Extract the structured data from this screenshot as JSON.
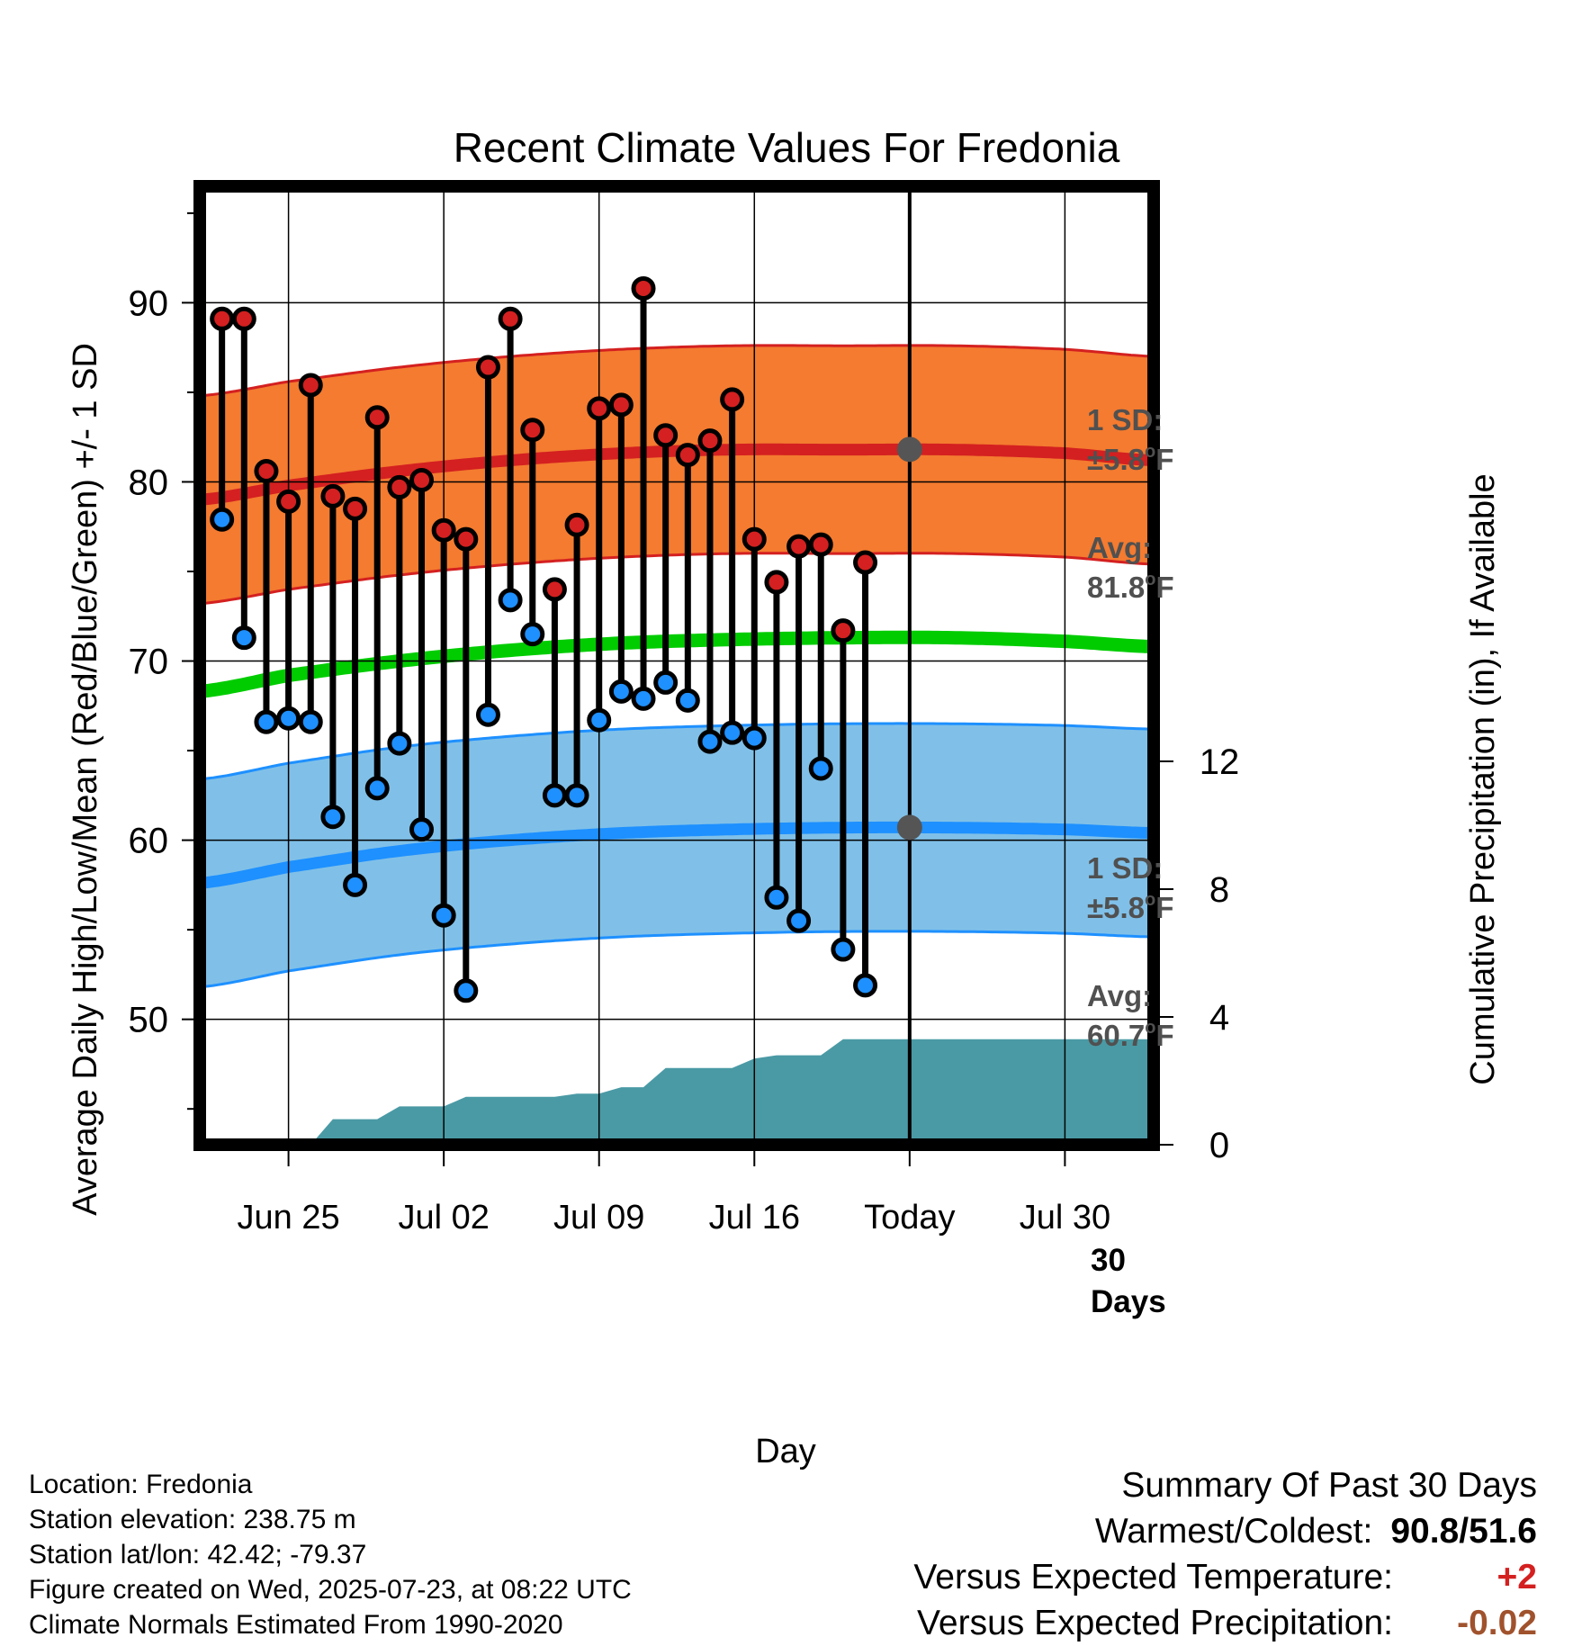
{
  "chart_data": {
    "type": "line",
    "title": "Recent Climate Values For Fredonia",
    "xlabel": "Day",
    "ylabel": "Average Daily High/Low/Mean (Red/Blue/Green) +/- 1 SD",
    "y2label": "Cumulative Precipitation (in), If Available",
    "ylim": [
      43,
      96.5
    ],
    "y2lim": [
      0,
      30
    ],
    "x_start": "2025-06-21",
    "x_end": "2025-08-03",
    "today": "2025-07-23",
    "x_ticks": [
      {
        "date": "2025-06-25",
        "label": "Jun 25"
      },
      {
        "date": "2025-07-02",
        "label": "Jul 02"
      },
      {
        "date": "2025-07-09",
        "label": "Jul 09"
      },
      {
        "date": "2025-07-16",
        "label": "Jul 16"
      },
      {
        "date": "2025-07-23",
        "label": "Today"
      },
      {
        "date": "2025-07-30",
        "label": "Jul 30"
      }
    ],
    "y_ticks": [
      50,
      60,
      70,
      80,
      90
    ],
    "y2_ticks": [
      0,
      4,
      8,
      12
    ],
    "grid": true,
    "colors": {
      "high_band": "#f47b30",
      "high_line": "#d42020",
      "low_band": "#80c0e8",
      "low_line": "#1e90ff",
      "mean_line": "#00cc00",
      "precip": "#4a9aa5",
      "high_dot": "#d42020",
      "low_dot": "#1e90ff",
      "annotation_text": "#505050",
      "versus_temp": "#d42020",
      "versus_precip": "#a0522d"
    },
    "normals": {
      "dates": [
        "2025-06-21",
        "2025-06-25",
        "2025-06-30",
        "2025-07-05",
        "2025-07-10",
        "2025-07-15",
        "2025-07-20",
        "2025-07-25",
        "2025-07-30",
        "2025-08-03"
      ],
      "high_avg": [
        79.0,
        79.8,
        80.6,
        81.2,
        81.6,
        81.8,
        81.8,
        81.8,
        81.6,
        81.2
      ],
      "low_avg": [
        57.6,
        58.5,
        59.4,
        60.0,
        60.4,
        60.6,
        60.7,
        60.7,
        60.6,
        60.4
      ],
      "mean_avg": [
        68.3,
        69.2,
        70.0,
        70.6,
        71.0,
        71.2,
        71.3,
        71.3,
        71.1,
        70.8
      ],
      "high_sd": 5.8,
      "low_sd": 5.8
    },
    "daily": {
      "dates": [
        "2025-06-22",
        "2025-06-23",
        "2025-06-24",
        "2025-06-25",
        "2025-06-26",
        "2025-06-27",
        "2025-06-28",
        "2025-06-29",
        "2025-06-30",
        "2025-07-01",
        "2025-07-02",
        "2025-07-03",
        "2025-07-04",
        "2025-07-05",
        "2025-07-06",
        "2025-07-07",
        "2025-07-08",
        "2025-07-09",
        "2025-07-10",
        "2025-07-11",
        "2025-07-12",
        "2025-07-13",
        "2025-07-14",
        "2025-07-15",
        "2025-07-16",
        "2025-07-17",
        "2025-07-18",
        "2025-07-19",
        "2025-07-20",
        "2025-07-21",
        "2025-07-22"
      ],
      "high": [
        89.1,
        89.1,
        80.6,
        78.9,
        85.4,
        79.2,
        78.5,
        83.6,
        79.7,
        80.1,
        77.3,
        76.8,
        86.4,
        89.1,
        82.9,
        74.0,
        77.6,
        84.1,
        84.3,
        90.8,
        82.6,
        81.5,
        82.3,
        84.6,
        76.8,
        74.4,
        76.4,
        76.5,
        71.7,
        75.5,
        null
      ],
      "low": [
        77.9,
        71.3,
        66.6,
        66.8,
        66.6,
        61.3,
        57.5,
        62.9,
        65.4,
        60.6,
        55.8,
        51.6,
        67.0,
        73.4,
        71.5,
        62.5,
        62.5,
        66.7,
        68.3,
        67.9,
        68.8,
        67.8,
        65.5,
        66.0,
        65.7,
        56.8,
        55.5,
        64.0,
        53.9,
        51.9,
        null
      ]
    },
    "precip_cumulative": {
      "dates": [
        "2025-06-21",
        "2025-06-22",
        "2025-06-23",
        "2025-06-24",
        "2025-06-25",
        "2025-06-26",
        "2025-06-27",
        "2025-06-28",
        "2025-06-29",
        "2025-06-30",
        "2025-07-01",
        "2025-07-02",
        "2025-07-03",
        "2025-07-04",
        "2025-07-05",
        "2025-07-06",
        "2025-07-07",
        "2025-07-08",
        "2025-07-09",
        "2025-07-10",
        "2025-07-11",
        "2025-07-12",
        "2025-07-13",
        "2025-07-14",
        "2025-07-15",
        "2025-07-16",
        "2025-07-17",
        "2025-07-18",
        "2025-07-19",
        "2025-07-20",
        "2025-07-21",
        "2025-07-22",
        "2025-07-23",
        "2025-08-03"
      ],
      "values": [
        0,
        0,
        0,
        0,
        0,
        0,
        0.8,
        0.8,
        0.8,
        1.2,
        1.2,
        1.2,
        1.5,
        1.5,
        1.5,
        1.5,
        1.5,
        1.6,
        1.6,
        1.8,
        1.8,
        2.4,
        2.4,
        2.4,
        2.4,
        2.7,
        2.8,
        2.8,
        2.8,
        3.3,
        3.3,
        3.3,
        3.3,
        3.3
      ]
    }
  },
  "annotations": {
    "high_sd_label": "1 SD:",
    "high_sd_value": "±5.8",
    "high_sd_unit": "F",
    "high_avg_label": "Avg:",
    "high_avg_value": "81.8",
    "high_avg_unit": "F",
    "low_sd_label": "1 SD:",
    "low_sd_value": "±5.8",
    "low_sd_unit": "F",
    "low_avg_label": "Avg:",
    "low_avg_value": "60.7",
    "low_avg_unit": "F",
    "degree_mark": "o",
    "days_count": "30",
    "days_word": "Days"
  },
  "info": {
    "location": "Location: Fredonia",
    "elevation": "Station elevation: 238.75 m",
    "latlon": "Station lat/lon: 42.42; -79.37",
    "created": "Figure created on Wed, 2025-07-23, at 08:22 UTC",
    "normals": "Climate Normals Estimated From 1990-2020"
  },
  "summary": {
    "title": "Summary Of Past 30 Days",
    "warmest_coldest_label": "Warmest/Coldest:",
    "warmest_coldest_value": "90.8/51.6",
    "versus_temp_label": "Versus Expected Temperature:",
    "versus_temp_value": "+2",
    "versus_precip_label": "Versus Expected Precipitation:",
    "versus_precip_value": "-0.02"
  }
}
